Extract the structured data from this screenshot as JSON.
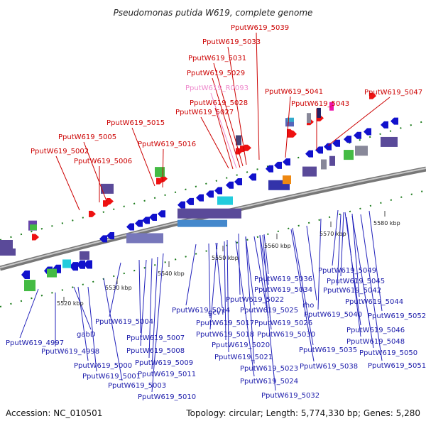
{
  "title": "Pseudomonas putida W619, complete genome",
  "footer": {
    "accession": "Accession: NC_010501",
    "topology": "Topology: circular; Length: 5,774,330 bp; Genes: 5,280"
  },
  "ticks": [
    "5520 kbp",
    "5530 kbp",
    "5540 kbp",
    "5550 kbp",
    "5560 kbp",
    "5570 kbp",
    "5580 kbp"
  ],
  "top_labels": [
    {
      "text": "PputW619_5039",
      "color": "red"
    },
    {
      "text": "PputW619_5033",
      "color": "red"
    },
    {
      "text": "PputW619_5031",
      "color": "red"
    },
    {
      "text": "PputW619_5029",
      "color": "red"
    },
    {
      "text": "PputW619_R0093",
      "color": "pink"
    },
    {
      "text": "PputW619_5041",
      "color": "red"
    },
    {
      "text": "PputW619_5047",
      "color": "red"
    },
    {
      "text": "PputW619_5028",
      "color": "red"
    },
    {
      "text": "PputW619_5043",
      "color": "red"
    },
    {
      "text": "PputW619_5027",
      "color": "red"
    },
    {
      "text": "PputW619_5015",
      "color": "red"
    },
    {
      "text": "PputW619_5005",
      "color": "red"
    },
    {
      "text": "PputW619_5016",
      "color": "red"
    },
    {
      "text": "PputW619_5002",
      "color": "red"
    },
    {
      "text": "PputW619_5006",
      "color": "red"
    }
  ],
  "bottom_labels": [
    {
      "text": "PputW619_5036"
    },
    {
      "text": "PputW619_5049"
    },
    {
      "text": "PputW619_5045"
    },
    {
      "text": "PputW619_5034"
    },
    {
      "text": "PputW619_5042"
    },
    {
      "text": "PputW619_5022"
    },
    {
      "text": "PputW619_5014"
    },
    {
      "text": "PputW619_5044"
    },
    {
      "text": "rho"
    },
    {
      "text": "PputW619_5025"
    },
    {
      "text": "gcvT"
    },
    {
      "text": "PputW619_5040"
    },
    {
      "text": "PputW619_5052"
    },
    {
      "text": "PputW619_5004"
    },
    {
      "text": "PputW619_5017"
    },
    {
      "text": "PputW619_5026"
    },
    {
      "text": "PputW619_5046"
    },
    {
      "text": "PputW619_5018"
    },
    {
      "text": "PputW619_5030"
    },
    {
      "text": "PputW619_5007"
    },
    {
      "text": "PputW619_4997"
    },
    {
      "text": "PputW619_5048"
    },
    {
      "text": "gabD"
    },
    {
      "text": "PputW619_5020"
    },
    {
      "text": "PputW619_5008"
    },
    {
      "text": "PputW619_4998"
    },
    {
      "text": "PputW619_5035"
    },
    {
      "text": "PputW619_5050"
    },
    {
      "text": "PputW619_5021"
    },
    {
      "text": "PputW619_5009"
    },
    {
      "text": "PputW619_5000"
    },
    {
      "text": "PputW619_5038"
    },
    {
      "text": "PputW619_5051"
    },
    {
      "text": "PputW619_5023"
    },
    {
      "text": "PputW619_5011"
    },
    {
      "text": "PputW619_5001"
    },
    {
      "text": "PputW619_5024"
    },
    {
      "text": "PputW619_5003"
    },
    {
      "text": "PputW619_5010"
    },
    {
      "text": "PputW619_5032"
    }
  ]
}
